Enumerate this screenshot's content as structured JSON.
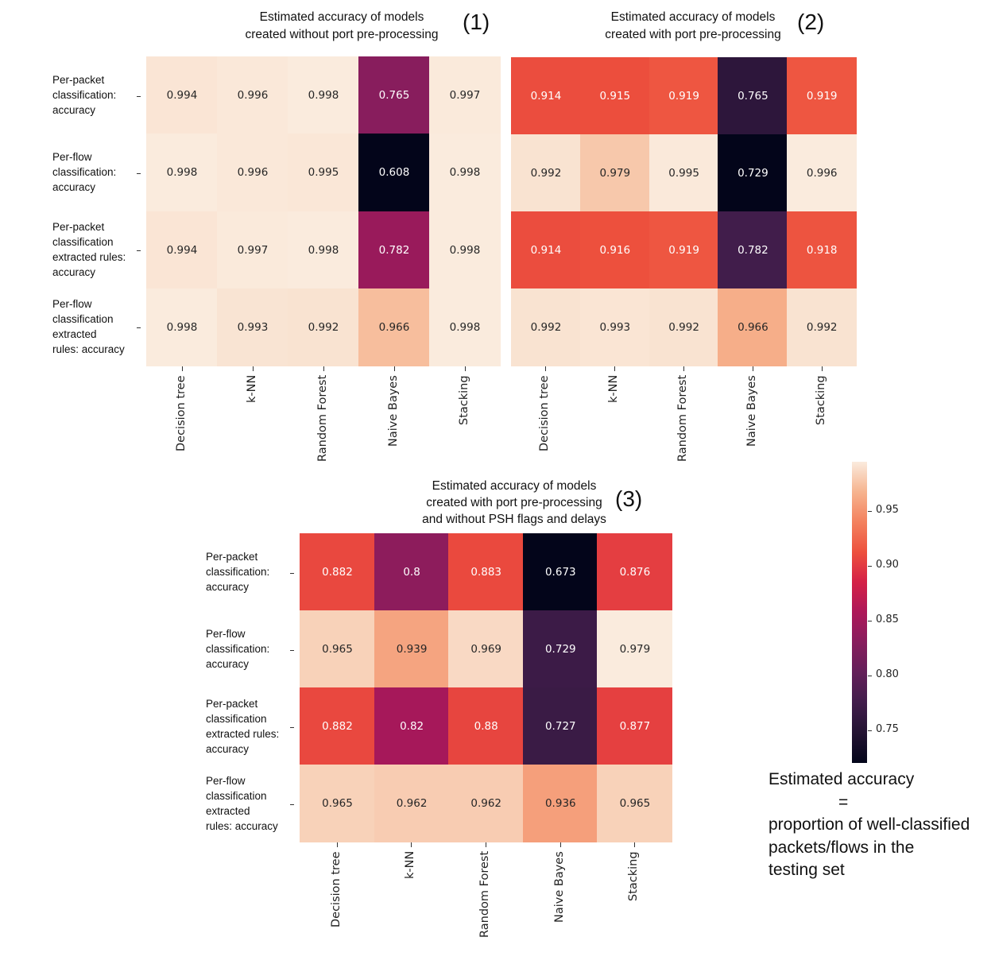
{
  "chart_data": [
    {
      "type": "heatmap",
      "title": "Estimated accuracy of models\ncreated without port pre-processing",
      "title_lines": [
        "Estimated accuracy of models",
        "created without port pre-processing"
      ],
      "panel_label": "(1)",
      "columns": [
        "Decision tree",
        "k-NN",
        "Random Forest",
        "Naive Bayes",
        "Stacking"
      ],
      "rows": [
        [
          "Per-packet",
          "classification:",
          "accuracy"
        ],
        [
          "Per-flow",
          "classification:",
          "accuracy"
        ],
        [
          "Per-packet",
          "classification",
          "extracted rules:",
          "accuracy"
        ],
        [
          "Per-flow",
          "classification",
          "extracted",
          "rules: accuracy"
        ]
      ],
      "values": [
        [
          0.994,
          0.996,
          0.998,
          0.765,
          0.997
        ],
        [
          0.998,
          0.996,
          0.995,
          0.608,
          0.998
        ],
        [
          0.994,
          0.997,
          0.998,
          0.782,
          0.998
        ],
        [
          0.998,
          0.993,
          0.992,
          0.966,
          0.998
        ]
      ],
      "labels": [
        [
          "0.994",
          "0.996",
          "0.998",
          "0.765",
          "0.997"
        ],
        [
          "0.998",
          "0.996",
          "0.995",
          "0.608",
          "0.998"
        ],
        [
          "0.994",
          "0.997",
          "0.998",
          "0.782",
          "0.998"
        ],
        [
          "0.998",
          "0.993",
          "0.992",
          "0.966",
          "0.998"
        ]
      ],
      "colormap": "rocket",
      "show_row_labels": true
    },
    {
      "type": "heatmap",
      "title": "Estimated accuracy of models\ncreated with port pre-processing",
      "title_lines": [
        "Estimated accuracy of models",
        "created with port pre-processing"
      ],
      "panel_label": "(2)",
      "columns": [
        "Decision tree",
        "k-NN",
        "Random Forest",
        "Naive Bayes",
        "Stacking"
      ],
      "rows": [],
      "values": [
        [
          0.914,
          0.915,
          0.919,
          0.765,
          0.919
        ],
        [
          0.992,
          0.979,
          0.995,
          0.729,
          0.996
        ],
        [
          0.914,
          0.916,
          0.919,
          0.782,
          0.918
        ],
        [
          0.992,
          0.993,
          0.992,
          0.966,
          0.992
        ]
      ],
      "labels": [
        [
          "0.914",
          "0.915",
          "0.919",
          "0.765",
          "0.919"
        ],
        [
          "0.992",
          "0.979",
          "0.995",
          "0.729",
          "0.996"
        ],
        [
          "0.914",
          "0.916",
          "0.919",
          "0.782",
          "0.918"
        ],
        [
          "0.992",
          "0.993",
          "0.992",
          "0.966",
          "0.992"
        ]
      ],
      "colormap": "rocket",
      "show_row_labels": false
    },
    {
      "type": "heatmap",
      "title": "Estimated accuracy of models\ncreated with port pre-processing\nand without PSH flags and delays",
      "title_lines": [
        "Estimated accuracy of models",
        "created with port pre-processing",
        "and without PSH flags and delays"
      ],
      "panel_label": "(3)",
      "columns": [
        "Decision tree",
        "k-NN",
        "Random Forest",
        "Naive Bayes",
        "Stacking"
      ],
      "rows": [
        [
          "Per-packet",
          "classification:",
          "accuracy"
        ],
        [
          "Per-flow",
          "classification:",
          "accuracy"
        ],
        [
          "Per-packet",
          "classification",
          "extracted rules:",
          "accuracy"
        ],
        [
          "Per-flow",
          "classification",
          "extracted",
          "rules: accuracy"
        ]
      ],
      "values": [
        [
          0.882,
          0.8,
          0.883,
          0.673,
          0.876
        ],
        [
          0.965,
          0.939,
          0.969,
          0.729,
          0.979
        ],
        [
          0.882,
          0.82,
          0.88,
          0.727,
          0.877
        ],
        [
          0.965,
          0.962,
          0.962,
          0.936,
          0.965
        ]
      ],
      "labels": [
        [
          "0.882",
          "0.8",
          "0.883",
          "0.673",
          "0.876"
        ],
        [
          "0.965",
          "0.939",
          "0.969",
          "0.729",
          "0.979"
        ],
        [
          "0.882",
          "0.82",
          "0.88",
          "0.727",
          "0.877"
        ],
        [
          "0.965",
          "0.962",
          "0.962",
          "0.936",
          "0.965"
        ]
      ],
      "colormap": "rocket",
      "show_row_labels": true
    }
  ],
  "colorbar": {
    "range": [
      0.72,
      0.995
    ],
    "ticks": [
      0.75,
      0.8,
      0.85,
      0.9,
      0.95
    ],
    "tick_labels": [
      "0.75",
      "0.80",
      "0.85",
      "0.90",
      "0.95"
    ],
    "colormap": "rocket"
  },
  "note": {
    "line1": "Estimated accuracy",
    "line2": "=",
    "line3": "proportion of well-classified",
    "line4": "packets/flows in the",
    "line5": "testing set"
  }
}
